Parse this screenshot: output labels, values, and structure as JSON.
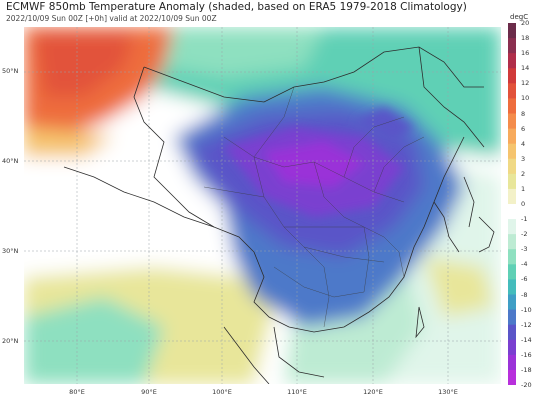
{
  "header": {
    "title": "ECMWF 850mb Temperature Anomaly (shaded, based on ERA5 1979-2018 Climatology)",
    "subtitle": "2022/10/09 Sun 00Z [+0h] valid at 2022/10/09 Sun 00Z"
  },
  "map": {
    "lat_labels": [
      "50°N",
      "40°N",
      "30°N",
      "20°N"
    ],
    "lon_labels": [
      "80°E",
      "90°E",
      "100°E",
      "110°E",
      "120°E",
      "130°E"
    ]
  },
  "colorbar": {
    "unit": "degC",
    "ticks": [
      "20",
      "18",
      "16",
      "14",
      "12",
      "10",
      "8",
      "6",
      "4",
      "3",
      "2",
      "1",
      "0",
      "-1",
      "-2",
      "-3",
      "-4",
      "-6",
      "-8",
      "-10",
      "-12",
      "-14",
      "-16",
      "-18",
      "-20"
    ],
    "colors": {
      "20": "#6b2c4a",
      "18": "#8a2f4f",
      "16": "#b02e4a",
      "14": "#d03a3a",
      "12": "#e2523a",
      "10": "#ee6d3d",
      "8": "#f48c4b",
      "6": "#f7aa5c",
      "4": "#f5c46e",
      "3": "#f0d985",
      "2": "#e8e69a",
      "1": "#f3f1c8",
      "0": "#ffffff",
      "-1": "#e0f5ea",
      "-2": "#bdebd3",
      "-3": "#8ee0c0",
      "-4": "#5fd0b5",
      "-6": "#44bcbc",
      "-8": "#3f9ec5",
      "-10": "#4d79c9",
      "-12": "#5a55c8",
      "-14": "#7a3fd0",
      "-16": "#9a33d8",
      "-18": "#b830dc",
      "-20": "#cf3ee0"
    }
  }
}
